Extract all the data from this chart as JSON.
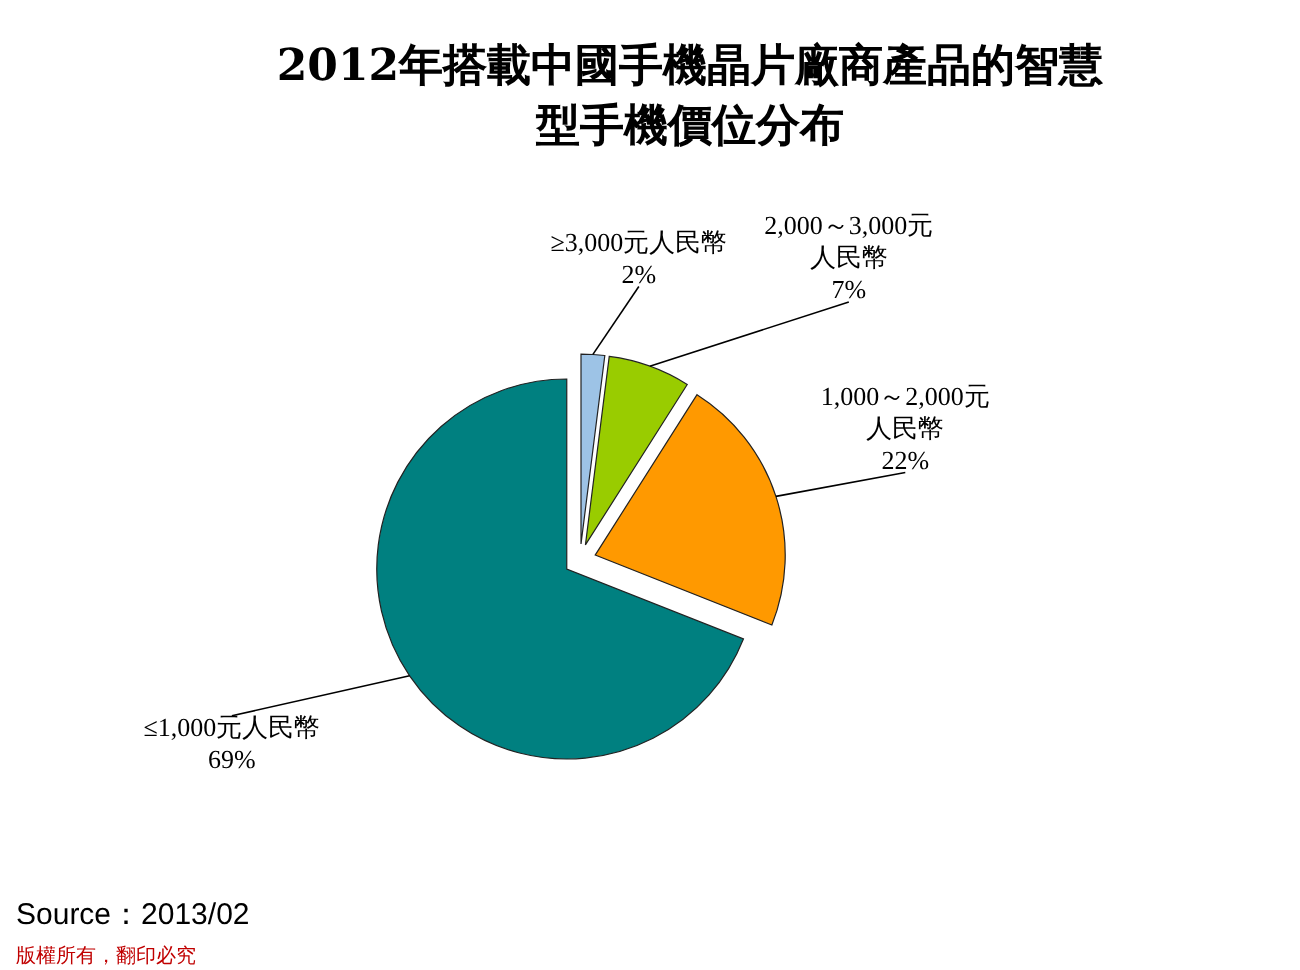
{
  "chart_data": {
    "type": "pie",
    "title": "2012年搭載中國手機晶片廠商產品的智慧型手機價位分布",
    "categories": [
      "≥3,000元人民幣",
      "2,000～3,000元人民幣",
      "1,000～2,000元人民幣",
      "≤1,000元人民幣"
    ],
    "values": [
      2,
      7,
      22,
      69
    ],
    "value_labels": [
      "2%",
      "7%",
      "22%",
      "69%"
    ],
    "colors": [
      "#9dc3e6",
      "#99cc00",
      "#ff9900",
      "#008080"
    ],
    "annotations": [
      "Source：2013/02",
      "版權所有，翻印必究"
    ]
  }
}
